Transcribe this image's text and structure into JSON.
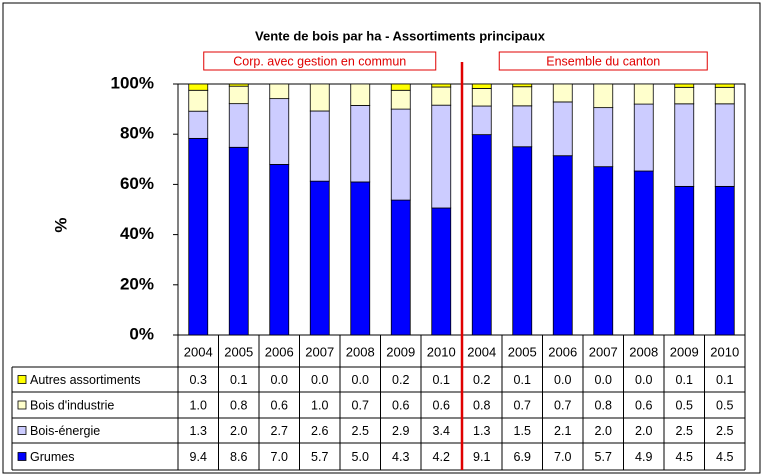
{
  "chart_data": {
    "type": "bar",
    "stacking": "percent",
    "title": "Vente de bois par ha - Assortiments principaux",
    "ylabel": "%",
    "groups": [
      "Corp. avec gestion en commun",
      "Ensemble du canton"
    ],
    "categories": [
      "2004",
      "2005",
      "2006",
      "2007",
      "2008",
      "2009",
      "2010",
      "2004",
      "2005",
      "2006",
      "2007",
      "2008",
      "2009",
      "2010"
    ],
    "ylim": [
      0,
      100
    ],
    "yticks": [
      {
        "value": 0,
        "label": "0%"
      },
      {
        "value": 20,
        "label": "20%"
      },
      {
        "value": 40,
        "label": "40%"
      },
      {
        "value": 60,
        "label": "60%"
      },
      {
        "value": 80,
        "label": "80%"
      },
      {
        "value": 100,
        "label": "100%"
      }
    ],
    "series": [
      {
        "name": "Autres assortiments",
        "color": "#ffff00",
        "values": [
          0.3,
          0.1,
          0,
          0,
          0,
          0.2,
          0.1,
          0.2,
          0.1,
          0,
          0,
          0,
          0.1,
          0.1
        ],
        "value_labels": [
          "0.3",
          "0.1",
          "0.0",
          "0.0",
          "0.0",
          "0.2",
          "0.1",
          "0.2",
          "0.1",
          "0.0",
          "0.0",
          "0.0",
          "0.1",
          "0.1"
        ]
      },
      {
        "name": "Bois d'industrie",
        "color": "#ffffcc",
        "values": [
          1,
          0.8,
          0.6,
          1,
          0.7,
          0.6,
          0.6,
          0.8,
          0.7,
          0.7,
          0.8,
          0.6,
          0.5,
          0.5
        ],
        "value_labels": [
          "1.0",
          "0.8",
          "0.6",
          "1.0",
          "0.7",
          "0.6",
          "0.6",
          "0.8",
          "0.7",
          "0.7",
          "0.8",
          "0.6",
          "0.5",
          "0.5"
        ]
      },
      {
        "name": "Bois-énergie",
        "color": "#ccccff",
        "values": [
          1.3,
          2,
          2.7,
          2.6,
          2.5,
          2.9,
          3.4,
          1.3,
          1.5,
          2.1,
          2,
          2,
          2.5,
          2.5
        ],
        "value_labels": [
          "1.3",
          "2.0",
          "2.7",
          "2.6",
          "2.5",
          "2.9",
          "3.4",
          "1.3",
          "1.5",
          "2.1",
          "2.0",
          "2.0",
          "2.5",
          "2.5"
        ]
      },
      {
        "name": "Grumes",
        "color": "#0000ff",
        "values": [
          9.4,
          8.6,
          7,
          5.7,
          5,
          4.3,
          4.2,
          9.1,
          6.9,
          7,
          5.7,
          4.9,
          4.5,
          4.5
        ],
        "value_labels": [
          "9.4",
          "8.6",
          "7.0",
          "5.7",
          "5.0",
          "4.3",
          "4.2",
          "9.1",
          "6.9",
          "7.0",
          "5.7",
          "4.9",
          "4.5",
          "4.5"
        ]
      }
    ]
  }
}
